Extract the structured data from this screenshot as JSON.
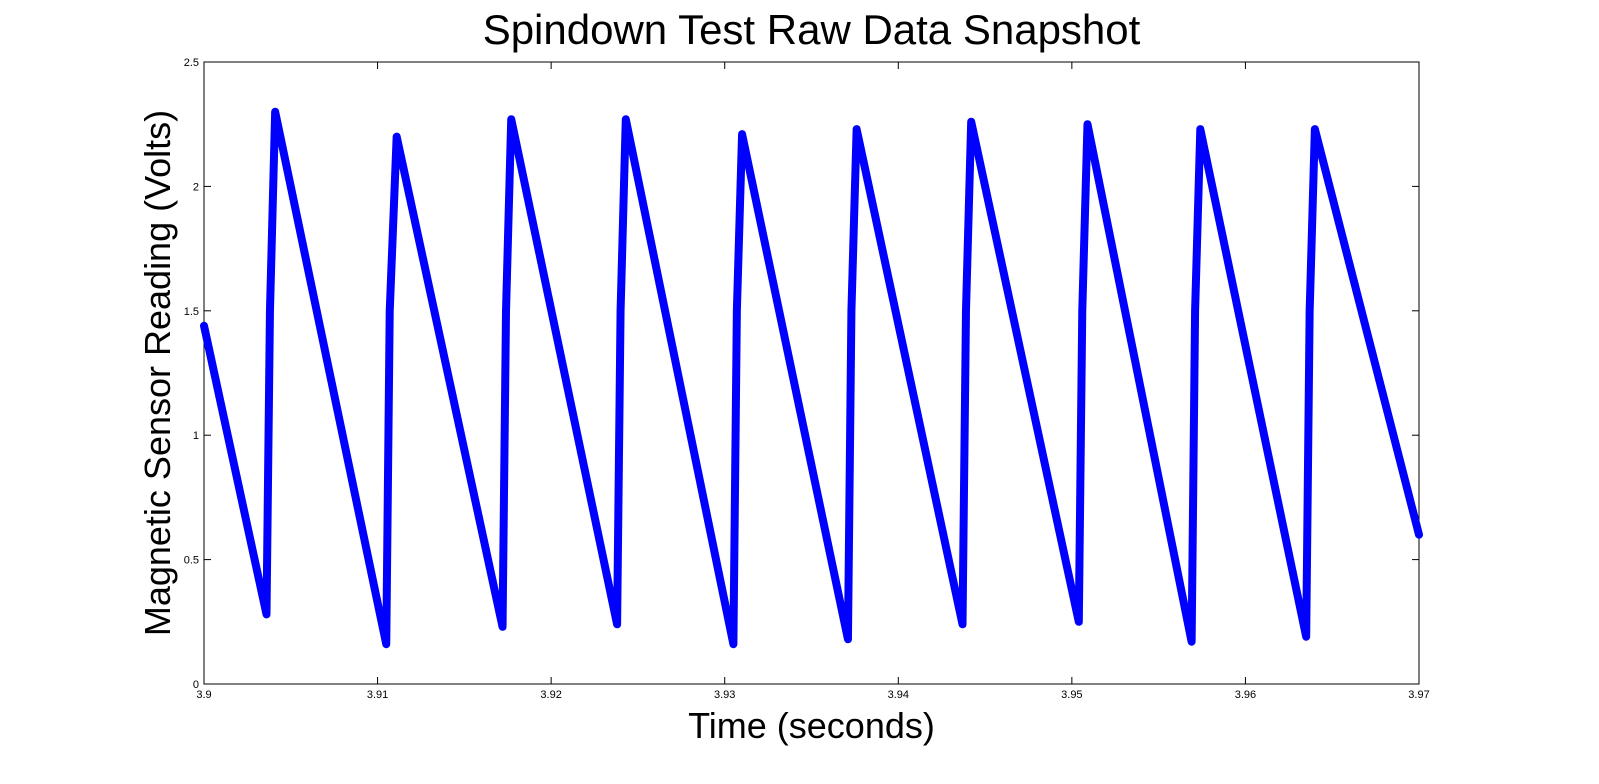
{
  "chart_data": {
    "type": "line",
    "title": "Spindown Test Raw Data Snapshot",
    "xlabel": "Time (seconds)",
    "ylabel": "Magnetic Sensor Reading (Volts)",
    "xlim": [
      3.9,
      3.97
    ],
    "ylim": [
      0,
      2.5
    ],
    "xticks": [
      3.9,
      3.91,
      3.92,
      3.93,
      3.94,
      3.95,
      3.96,
      3.97
    ],
    "xtick_labels": [
      "3.9",
      "3.91",
      "3.92",
      "3.93",
      "3.94",
      "3.95",
      "3.96",
      "3.97"
    ],
    "yticks": [
      0,
      0.5,
      1,
      1.5,
      2,
      2.5
    ],
    "ytick_labels": [
      "0",
      "0.5",
      "1",
      "1.5",
      "2",
      "2.5"
    ],
    "grid": false,
    "series": [
      {
        "color": "#0000ff",
        "x": [
          3.9,
          3.9036,
          3.9038,
          3.9041,
          3.9105,
          3.9107,
          3.9111,
          3.9172,
          3.9174,
          3.9177,
          3.9238,
          3.924,
          3.9243,
          3.9305,
          3.9307,
          3.931,
          3.9371,
          3.9373,
          3.9376,
          3.9437,
          3.9439,
          3.9442,
          3.9504,
          3.9506,
          3.9509,
          3.9569,
          3.9571,
          3.9574,
          3.9635,
          3.9637,
          3.964,
          3.97
        ],
        "y": [
          1.44,
          0.28,
          1.5,
          2.3,
          0.16,
          1.5,
          2.2,
          0.23,
          1.5,
          2.27,
          0.24,
          1.5,
          2.27,
          0.16,
          1.5,
          2.21,
          0.18,
          1.5,
          2.23,
          0.24,
          1.5,
          2.26,
          0.25,
          1.5,
          2.25,
          0.17,
          1.5,
          2.23,
          0.19,
          1.5,
          2.23,
          0.6
        ]
      }
    ]
  }
}
